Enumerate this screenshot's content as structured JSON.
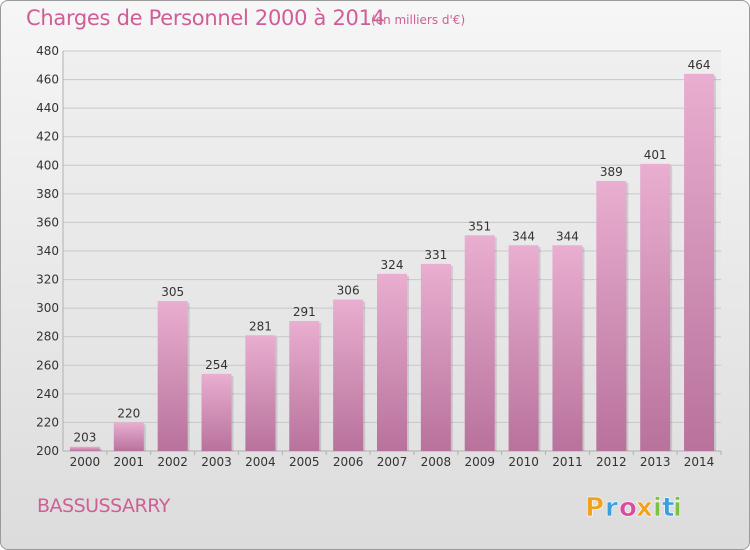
{
  "title": "Charges de Personnel 2000 à 2014",
  "subtitle": "(en milliers d'€)",
  "commune": "BASSUSSARRY",
  "logo": {
    "text": "Proxiti",
    "letters": [
      {
        "ch": "P",
        "color": "#f0a21f"
      },
      {
        "ch": "r",
        "color": "#3a9fe0"
      },
      {
        "ch": "o",
        "color": "#d84c9c"
      },
      {
        "ch": "x",
        "color": "#f0a21f"
      },
      {
        "ch": "i",
        "color": "#7cc142"
      },
      {
        "ch": "t",
        "color": "#3a9fe0"
      },
      {
        "ch": "i",
        "color": "#7cc142"
      }
    ]
  },
  "colors": {
    "bar_top": "#e9aed0",
    "bar_bottom": "#b8729c",
    "grid": "#c8c8c8",
    "axis_text": "#333333",
    "accent": "#d05e96"
  },
  "chart_data": {
    "type": "bar",
    "title": "Charges de Personnel 2000 à 2014",
    "categories": [
      "2000",
      "2001",
      "2002",
      "2003",
      "2004",
      "2005",
      "2006",
      "2007",
      "2008",
      "2009",
      "2010",
      "2011",
      "2012",
      "2013",
      "2014"
    ],
    "values": [
      203,
      220,
      305,
      254,
      281,
      291,
      306,
      324,
      331,
      351,
      344,
      344,
      389,
      401,
      464
    ],
    "ylim": [
      200,
      480
    ],
    "yticks": [
      200,
      220,
      240,
      260,
      280,
      300,
      320,
      340,
      360,
      380,
      400,
      420,
      440,
      460,
      480
    ],
    "grid": true
  }
}
